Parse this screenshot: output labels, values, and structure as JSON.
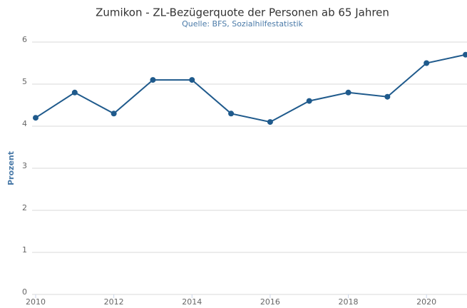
{
  "chart_data": {
    "type": "line",
    "title": "Zumikon - ZL-Bezügerquote der Personen ab 65 Jahren",
    "subtitle": "Quelle: BFS, Sozialhilfestatistik",
    "y_label": "Prozent",
    "x": [
      2010,
      2011,
      2012,
      2013,
      2014,
      2015,
      2016,
      2017,
      2018,
      2019,
      2020,
      2021
    ],
    "series": [
      {
        "name": "Zumikon",
        "color": "#1f5a8c",
        "values": [
          4.2,
          4.8,
          4.3,
          5.1,
          5.1,
          4.3,
          4.1,
          4.6,
          4.8,
          4.7,
          5.5,
          5.7
        ]
      }
    ],
    "xlim": [
      2010,
      2021
    ],
    "xticks": [
      2010,
      2012,
      2014,
      2016,
      2018,
      2020
    ],
    "ylim": [
      0,
      6
    ],
    "yticks": [
      0,
      1,
      2,
      3,
      4,
      5,
      6
    ],
    "grid": true
  }
}
